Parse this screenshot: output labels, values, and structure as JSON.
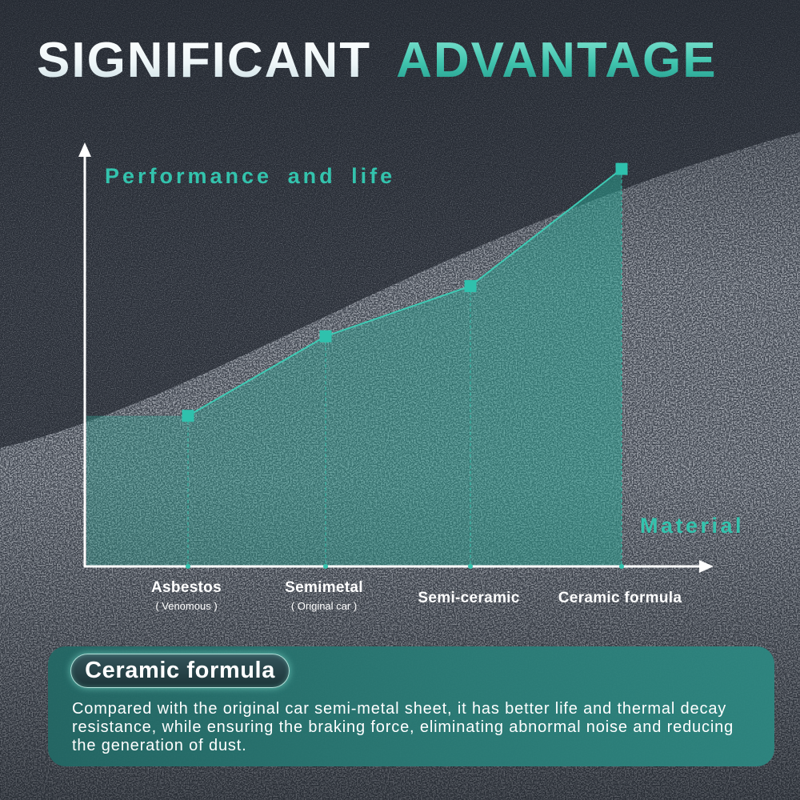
{
  "header": {
    "title_part1": "SIGNIFICANT",
    "title_part2": "ADVANTAGE"
  },
  "colors": {
    "background": "#2b3039",
    "accent": "#33c3ad",
    "panel": "#2a7b76",
    "axis": "#ffffff"
  },
  "chart_data": {
    "type": "area",
    "categories": [
      "Asbestos",
      "Semimetal",
      "Semi-ceramic",
      "Ceramic formula"
    ],
    "category_notes": [
      "( Venomous )",
      "( Original car )",
      "",
      ""
    ],
    "values": [
      36,
      55,
      67,
      95
    ],
    "xlabel": "Material",
    "ylabel": "Performance and life",
    "ylim": [
      0,
      100
    ],
    "axis_ticks": false,
    "grid": false,
    "markers": "square"
  },
  "info_panel": {
    "badge": "Ceramic formula",
    "text": "Compared with the original car semi-metal sheet, it has better life and thermal decay resistance, while ensuring the braking force, eliminating abnormal noise and reducing the generation of dust."
  }
}
